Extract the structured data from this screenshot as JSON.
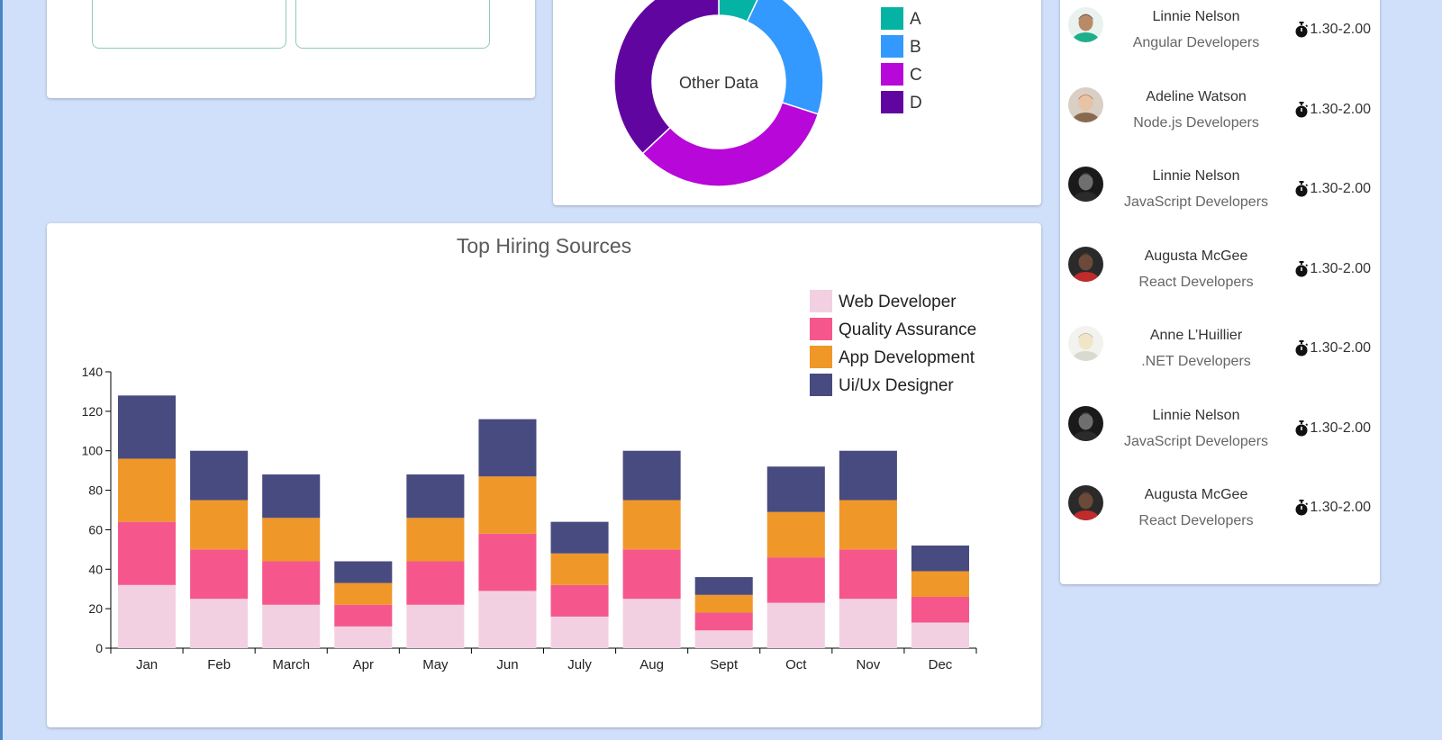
{
  "donut_card": {
    "center_label": "Other Data",
    "legend": [
      {
        "label": "A",
        "color": "#05b3a4"
      },
      {
        "label": "B",
        "color": "#3399ff"
      },
      {
        "label": "C",
        "color": "#b707d9"
      },
      {
        "label": "D",
        "color": "#6105a1"
      }
    ]
  },
  "developers": [
    {
      "name": "Linnie Nelson",
      "role": "Angular Developers",
      "time": "1.30-2.00",
      "avatar": "avatar-green"
    },
    {
      "name": "Adeline Watson",
      "role": "Node.js Developers",
      "time": "1.30-2.00",
      "avatar": "avatar-red-hair"
    },
    {
      "name": "Linnie Nelson",
      "role": "JavaScript Developers",
      "time": "1.30-2.00",
      "avatar": "avatar-dark"
    },
    {
      "name": "Augusta McGee",
      "role": "React Developers",
      "time": "1.30-2.00",
      "avatar": "avatar-red-shirt"
    },
    {
      "name": "Anne L’Huillier",
      "role": ".NET Developers",
      "time": "1.30-2.00",
      "avatar": "avatar-sketch"
    },
    {
      "name": "Linnie Nelson",
      "role": "JavaScript Developers",
      "time": "1.30-2.00",
      "avatar": "avatar-dark"
    },
    {
      "name": "Augusta McGee",
      "role": "React Developers",
      "time": "1.30-2.00",
      "avatar": "avatar-red-shirt"
    }
  ],
  "chart_data": [
    {
      "type": "pie",
      "title": "",
      "center_label": "Other Data",
      "labels": [
        "A",
        "B",
        "C",
        "D"
      ],
      "values": [
        7,
        23,
        33,
        37
      ],
      "colors": [
        "#05b3a4",
        "#3399ff",
        "#b707d9",
        "#6105a1"
      ],
      "legend": "right"
    },
    {
      "type": "bar",
      "stacked": true,
      "title": "Top Hiring Sources",
      "xlabel": "",
      "ylabel": "",
      "categories": [
        "Jan",
        "Feb",
        "March",
        "Apr",
        "May",
        "Jun",
        "July",
        "Aug",
        "Sept",
        "Oct",
        "Nov",
        "Dec"
      ],
      "ylim": [
        0,
        140
      ],
      "yticks": [
        0,
        20,
        40,
        60,
        80,
        100,
        120,
        140
      ],
      "legend": "top-right",
      "grid": false,
      "series": [
        {
          "name": "Web Developer",
          "color": "#f2d0e2",
          "values": [
            32,
            25,
            22,
            11,
            22,
            29,
            16,
            25,
            9,
            23,
            25,
            13
          ]
        },
        {
          "name": "Quality Assurance",
          "color": "#f5578c",
          "values": [
            32,
            25,
            22,
            11,
            22,
            29,
            16,
            25,
            9,
            23,
            25,
            13
          ]
        },
        {
          "name": "App Development",
          "color": "#f0972a",
          "values": [
            32,
            25,
            22,
            11,
            22,
            29,
            16,
            25,
            9,
            23,
            25,
            13
          ]
        },
        {
          "name": "Ui/Ux Designer",
          "color": "#474b7f",
          "values": [
            32,
            25,
            22,
            11,
            22,
            29,
            16,
            25,
            9,
            23,
            25,
            13
          ]
        }
      ]
    }
  ]
}
